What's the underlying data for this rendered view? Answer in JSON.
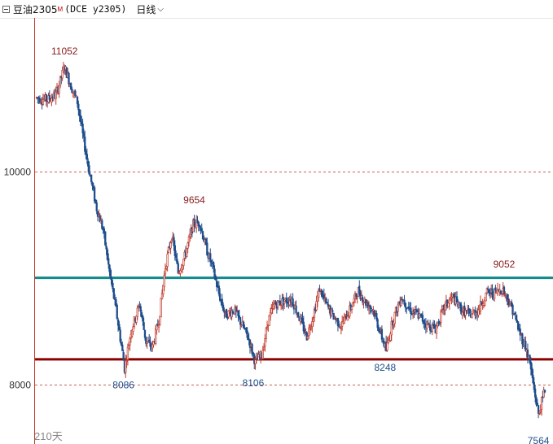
{
  "header": {
    "symbol": "豆油2305",
    "symbol_flag": "M",
    "code": "(DCE y2305)",
    "period": "日线"
  },
  "colors": {
    "up": "#c0392b",
    "down": "#1f4e8c",
    "support": "#8b0000",
    "resistance": "#138a8a",
    "grid": "#c0392b"
  },
  "chart_data": {
    "type": "candlestick",
    "y_ticks": [
      10000,
      8000
    ],
    "ylim": [
      7440,
      11440
    ],
    "bar_count_label": "210天",
    "horizontal_lines": [
      {
        "name": "resistance",
        "value": 9000
      },
      {
        "name": "support",
        "value": 8235
      }
    ],
    "annotations": [
      {
        "label": "11052",
        "index": 26,
        "value": 11052,
        "kind": "high"
      },
      {
        "label": "9654",
        "index": 147,
        "value": 9654,
        "kind": "high"
      },
      {
        "label": "9052",
        "index": 436,
        "value": 9052,
        "kind": "high"
      },
      {
        "label": "8086",
        "index": 81,
        "value": 8086,
        "kind": "low"
      },
      {
        "label": "8106",
        "index": 202,
        "value": 8106,
        "kind": "low"
      },
      {
        "label": "8248",
        "index": 325,
        "value": 8248,
        "kind": "low"
      },
      {
        "label": "7564",
        "index": 468,
        "value": 7564,
        "kind": "low"
      }
    ],
    "path_anchors": [
      [
        0,
        10690
      ],
      [
        10,
        10670
      ],
      [
        18,
        10720
      ],
      [
        26,
        10980
      ],
      [
        32,
        10800
      ],
      [
        38,
        10650
      ],
      [
        44,
        10280
      ],
      [
        50,
        9950
      ],
      [
        56,
        9650
      ],
      [
        62,
        9450
      ],
      [
        68,
        9050
      ],
      [
        74,
        8700
      ],
      [
        80,
        8300
      ],
      [
        82,
        8150
      ],
      [
        88,
        8500
      ],
      [
        96,
        8750
      ],
      [
        102,
        8400
      ],
      [
        108,
        8350
      ],
      [
        114,
        8600
      ],
      [
        120,
        9100
      ],
      [
        126,
        9400
      ],
      [
        132,
        9050
      ],
      [
        138,
        9200
      ],
      [
        146,
        9500
      ],
      [
        152,
        9520
      ],
      [
        158,
        9280
      ],
      [
        164,
        9100
      ],
      [
        170,
        8850
      ],
      [
        176,
        8650
      ],
      [
        184,
        8700
      ],
      [
        192,
        8550
      ],
      [
        198,
        8420
      ],
      [
        204,
        8200
      ],
      [
        210,
        8280
      ],
      [
        216,
        8600
      ],
      [
        222,
        8750
      ],
      [
        230,
        8780
      ],
      [
        238,
        8800
      ],
      [
        246,
        8600
      ],
      [
        252,
        8450
      ],
      [
        258,
        8650
      ],
      [
        264,
        8900
      ],
      [
        270,
        8750
      ],
      [
        276,
        8650
      ],
      [
        284,
        8550
      ],
      [
        292,
        8700
      ],
      [
        300,
        8880
      ],
      [
        306,
        8780
      ],
      [
        314,
        8700
      ],
      [
        320,
        8500
      ],
      [
        326,
        8320
      ],
      [
        332,
        8600
      ],
      [
        340,
        8820
      ],
      [
        348,
        8700
      ],
      [
        356,
        8650
      ],
      [
        364,
        8560
      ],
      [
        372,
        8520
      ],
      [
        380,
        8720
      ],
      [
        388,
        8820
      ],
      [
        396,
        8700
      ],
      [
        404,
        8650
      ],
      [
        412,
        8700
      ],
      [
        420,
        8860
      ],
      [
        428,
        8860
      ],
      [
        434,
        8900
      ],
      [
        438,
        8830
      ],
      [
        444,
        8700
      ],
      [
        450,
        8500
      ],
      [
        456,
        8350
      ],
      [
        460,
        8200
      ],
      [
        464,
        7950
      ],
      [
        468,
        7720
      ],
      [
        474,
        7950
      ]
    ]
  }
}
